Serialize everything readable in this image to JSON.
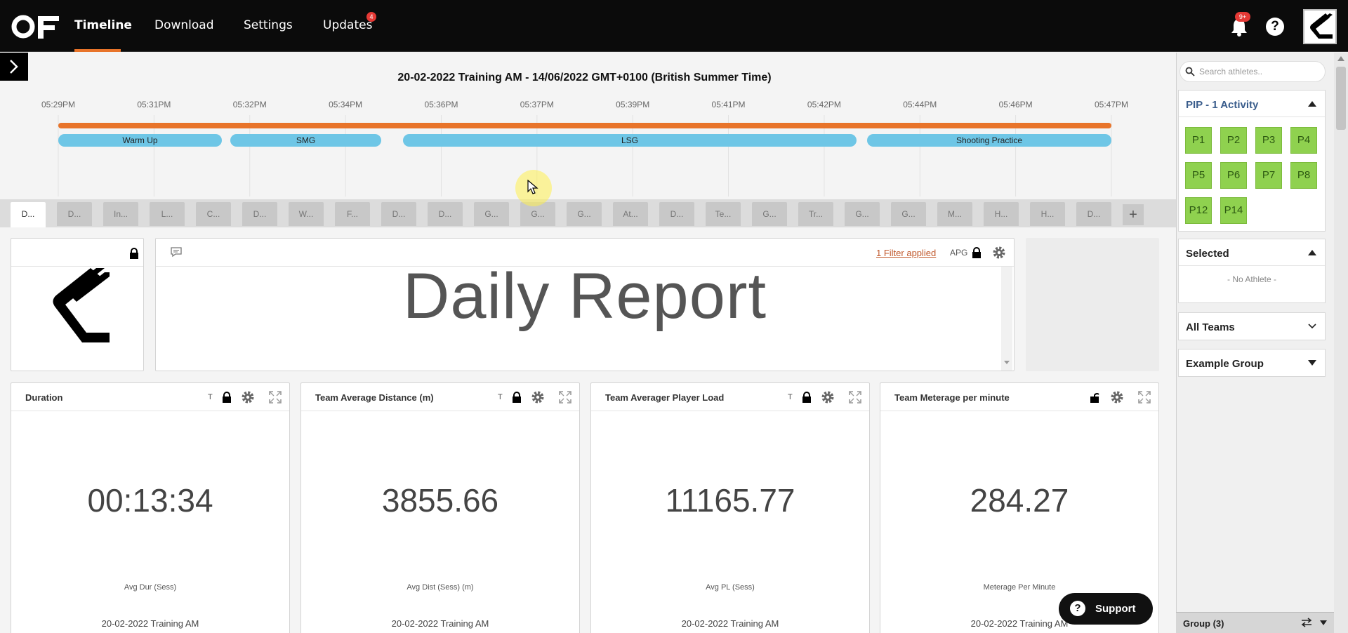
{
  "nav": {
    "items": [
      {
        "label": "Timeline"
      },
      {
        "label": "Download"
      },
      {
        "label": "Settings"
      },
      {
        "label": "Updates"
      }
    ],
    "updates_badge": "4",
    "notifications_badge": "9+",
    "help_label": "?"
  },
  "timeline": {
    "title": "20-02-2022 Training AM - 14/06/2022 GMT+0100 (British Summer Time)",
    "ticks": [
      "05:29PM",
      "05:31PM",
      "05:32PM",
      "05:34PM",
      "05:36PM",
      "05:37PM",
      "05:39PM",
      "05:41PM",
      "05:42PM",
      "05:44PM",
      "05:46PM",
      "05:47PM"
    ],
    "segments": [
      "Warm Up",
      "SMG",
      "LSG",
      "Shooting Practice"
    ],
    "bar_color": "#e8742a",
    "segment_color": "#6ec6e6"
  },
  "tabs": [
    "D...",
    "D...",
    "In...",
    "L...",
    "C...",
    "D...",
    "W...",
    "F...",
    "D...",
    "D...",
    "G...",
    "G...",
    "G...",
    "At...",
    "D...",
    "Te...",
    "G...",
    "Tr...",
    "G...",
    "G...",
    "M...",
    "H...",
    "H...",
    "D..."
  ],
  "tab_add": "+",
  "report": {
    "filter_link": "1 Filter applied",
    "apg_label": "APG",
    "title": "Daily Report"
  },
  "metrics": [
    {
      "title": "Duration",
      "t": "T",
      "value": "00:13:34",
      "label": "Avg Dur (Sess)",
      "session": "20-02-2022 Training AM"
    },
    {
      "title": "Team Average Distance (m)",
      "t": "T",
      "value": "3855.66",
      "label": "Avg Dist (Sess) (m)",
      "session": "20-02-2022 Training AM"
    },
    {
      "title": "Team Averager Player Load",
      "t": "T",
      "value": "11165.77",
      "label": "Avg PL (Sess)",
      "session": "20-02-2022 Training AM"
    },
    {
      "title": "Team Meterage per minute",
      "t": "",
      "value": "284.27",
      "label": "Meterage Per Minute",
      "session": "20-02-2022 Training AM"
    }
  ],
  "sidebar": {
    "search_placeholder": "Search athletes..",
    "pip_title": "PIP - 1 Activity",
    "athletes": [
      "P1",
      "P2",
      "P3",
      "P4",
      "P5",
      "P6",
      "P7",
      "P8",
      "P12",
      "P14"
    ],
    "athlete_color": "#8fd14f",
    "selected_title": "Selected",
    "no_athlete": "- No Athlete -",
    "all_teams": "All Teams",
    "example_group": "Example Group",
    "group_footer": "Group (3)"
  },
  "support_label": "Support",
  "accent_color": "#e8742a"
}
